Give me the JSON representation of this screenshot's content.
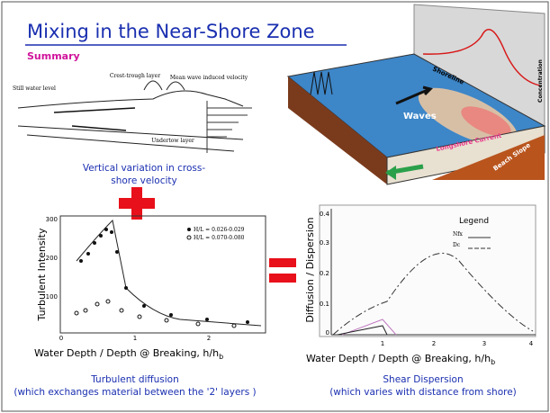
{
  "header": {
    "title": "Mixing in the Near-Shore Zone",
    "subtitle": "Summary"
  },
  "profile_diagram": {
    "labels": [
      "Still water level",
      "Crest-trough layer",
      "Mean wave induced velocity",
      "Undertow layer"
    ],
    "caption": [
      "Vertical variation in cross-",
      "shore velocity"
    ]
  },
  "turbulence_plot": {
    "y_label": "Turbulent Intensity",
    "y_ticks": [
      300,
      200,
      100,
      0
    ],
    "x_ticks": [
      1,
      2
    ],
    "legend": [
      "H/L = 0.026-0.029",
      "H/L = 0.070-0.080"
    ],
    "x_label": "Water Depth / Depth @ Breaking, h/h",
    "x_label_subscript": "b",
    "caption": [
      "Turbulent diffusion",
      "(which exchanges material between the '2' layers )"
    ]
  },
  "dispersion_plot": {
    "y_label": "Diffusion / Dispersion",
    "y_ticks": [
      0.4,
      0.3,
      0.2,
      0.1,
      0
    ],
    "x_ticks": [
      1,
      2,
      3,
      4
    ],
    "legend_title": "Legend",
    "legend": [
      "Nfx",
      "Dc"
    ],
    "x_label": "Water Depth / Depth @ Breaking, h/h",
    "x_label_subscript": "b",
    "caption": [
      "Shear Dispersion",
      "(which varies with distance from shore)"
    ]
  },
  "beach_diagram": {
    "labels": [
      "Shoreline",
      "Waves",
      "Longshore Current",
      "Beach Slope",
      "Concentration"
    ]
  }
}
